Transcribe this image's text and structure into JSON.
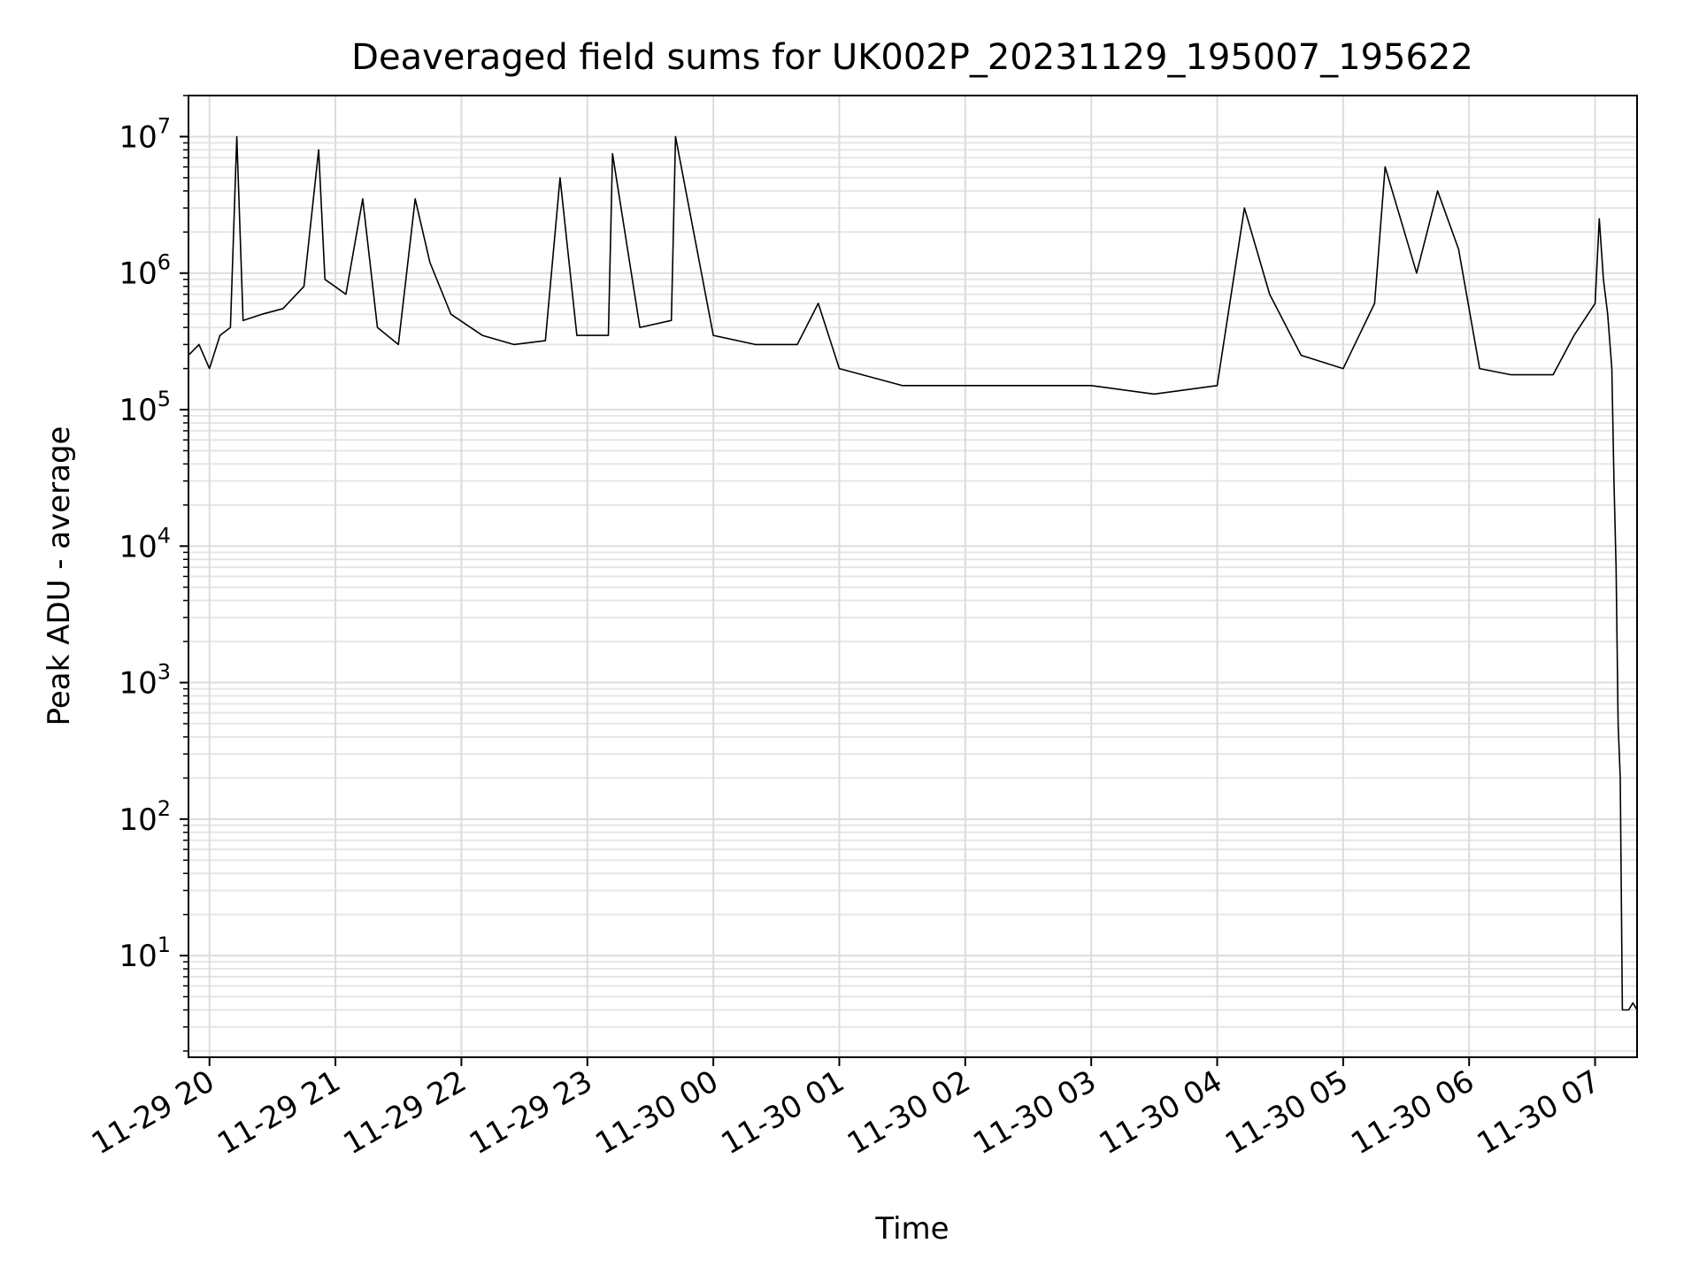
{
  "chart_data": {
    "type": "line",
    "title": "Deaveraged field sums for UK002P_20231129_195007_195622",
    "xlabel": "Time",
    "ylabel": "Peak ADU - average",
    "yscale": "log",
    "ylim": [
      1.8,
      20000000
    ],
    "xlim": [
      "2023-11-29 19:50",
      "2023-11-30 07:20"
    ],
    "grid": true,
    "legend": "none",
    "line_color": "#000000",
    "x_ticks": [
      {
        "t": "2023-11-29 20:00",
        "label": "11-29 20"
      },
      {
        "t": "2023-11-29 21:00",
        "label": "11-29 21"
      },
      {
        "t": "2023-11-29 22:00",
        "label": "11-29 22"
      },
      {
        "t": "2023-11-29 23:00",
        "label": "11-29 23"
      },
      {
        "t": "2023-11-30 00:00",
        "label": "11-30 00"
      },
      {
        "t": "2023-11-30 01:00",
        "label": "11-30 01"
      },
      {
        "t": "2023-11-30 02:00",
        "label": "11-30 02"
      },
      {
        "t": "2023-11-30 03:00",
        "label": "11-30 03"
      },
      {
        "t": "2023-11-30 04:00",
        "label": "11-30 04"
      },
      {
        "t": "2023-11-30 05:00",
        "label": "11-30 05"
      },
      {
        "t": "2023-11-30 06:00",
        "label": "11-30 06"
      },
      {
        "t": "2023-11-30 07:00",
        "label": "11-30 07"
      }
    ],
    "y_ticks": [
      {
        "v": 10,
        "base": "10",
        "exp": "1"
      },
      {
        "v": 100,
        "base": "10",
        "exp": "2"
      },
      {
        "v": 1000,
        "base": "10",
        "exp": "3"
      },
      {
        "v": 10000,
        "base": "10",
        "exp": "4"
      },
      {
        "v": 100000,
        "base": "10",
        "exp": "5"
      },
      {
        "v": 1000000,
        "base": "10",
        "exp": "6"
      },
      {
        "v": 10000000,
        "base": "10",
        "exp": "7"
      }
    ],
    "series": [
      {
        "points": [
          [
            "2023-11-29 19:50",
            250000
          ],
          [
            "2023-11-29 19:55",
            300000
          ],
          [
            "2023-11-29 20:00",
            200000
          ],
          [
            "2023-11-29 20:05",
            350000
          ],
          [
            "2023-11-29 20:10",
            400000
          ],
          [
            "2023-11-29 20:13",
            10000000
          ],
          [
            "2023-11-29 20:16",
            450000
          ],
          [
            "2023-11-29 20:25",
            500000
          ],
          [
            "2023-11-29 20:35",
            550000
          ],
          [
            "2023-11-29 20:45",
            800000
          ],
          [
            "2023-11-29 20:52",
            8000000
          ],
          [
            "2023-11-29 20:55",
            900000
          ],
          [
            "2023-11-29 21:05",
            700000
          ],
          [
            "2023-11-29 21:13",
            3500000
          ],
          [
            "2023-11-29 21:20",
            400000
          ],
          [
            "2023-11-29 21:30",
            300000
          ],
          [
            "2023-11-29 21:38",
            3500000
          ],
          [
            "2023-11-29 21:45",
            1200000
          ],
          [
            "2023-11-29 21:55",
            500000
          ],
          [
            "2023-11-29 22:10",
            350000
          ],
          [
            "2023-11-29 22:25",
            300000
          ],
          [
            "2023-11-29 22:40",
            320000
          ],
          [
            "2023-11-29 22:47",
            5000000
          ],
          [
            "2023-11-29 22:55",
            350000
          ],
          [
            "2023-11-29 23:10",
            350000
          ],
          [
            "2023-11-29 23:12",
            7500000
          ],
          [
            "2023-11-29 23:25",
            400000
          ],
          [
            "2023-11-29 23:40",
            450000
          ],
          [
            "2023-11-29 23:42",
            10000000
          ],
          [
            "2023-11-30 00:00",
            350000
          ],
          [
            "2023-11-30 00:20",
            300000
          ],
          [
            "2023-11-30 00:40",
            300000
          ],
          [
            "2023-11-30 00:50",
            600000
          ],
          [
            "2023-11-30 01:00",
            200000
          ],
          [
            "2023-11-30 01:30",
            150000
          ],
          [
            "2023-11-30 02:00",
            150000
          ],
          [
            "2023-11-30 02:30",
            150000
          ],
          [
            "2023-11-30 03:00",
            150000
          ],
          [
            "2023-11-30 03:30",
            130000
          ],
          [
            "2023-11-30 04:00",
            150000
          ],
          [
            "2023-11-30 04:13",
            3000000
          ],
          [
            "2023-11-30 04:25",
            700000
          ],
          [
            "2023-11-30 04:40",
            250000
          ],
          [
            "2023-11-30 05:00",
            200000
          ],
          [
            "2023-11-30 05:15",
            600000
          ],
          [
            "2023-11-30 05:20",
            6000000
          ],
          [
            "2023-11-30 05:35",
            1000000
          ],
          [
            "2023-11-30 05:45",
            4000000
          ],
          [
            "2023-11-30 05:55",
            1500000
          ],
          [
            "2023-11-30 06:05",
            200000
          ],
          [
            "2023-11-30 06:20",
            180000
          ],
          [
            "2023-11-30 06:40",
            180000
          ],
          [
            "2023-11-30 06:50",
            350000
          ],
          [
            "2023-11-30 07:00",
            600000
          ],
          [
            "2023-11-30 07:02",
            2500000
          ],
          [
            "2023-11-30 07:04",
            900000
          ],
          [
            "2023-11-30 07:06",
            500000
          ],
          [
            "2023-11-30 07:08",
            200000
          ],
          [
            "2023-11-30 07:09",
            30000
          ],
          [
            "2023-11-30 07:10",
            7000
          ],
          [
            "2023-11-30 07:11",
            500
          ],
          [
            "2023-11-30 07:12",
            200
          ],
          [
            "2023-11-30 07:13",
            4
          ],
          [
            "2023-11-30 07:16",
            4
          ],
          [
            "2023-11-30 07:18",
            4.5
          ],
          [
            "2023-11-30 07:20",
            4
          ]
        ]
      }
    ]
  }
}
